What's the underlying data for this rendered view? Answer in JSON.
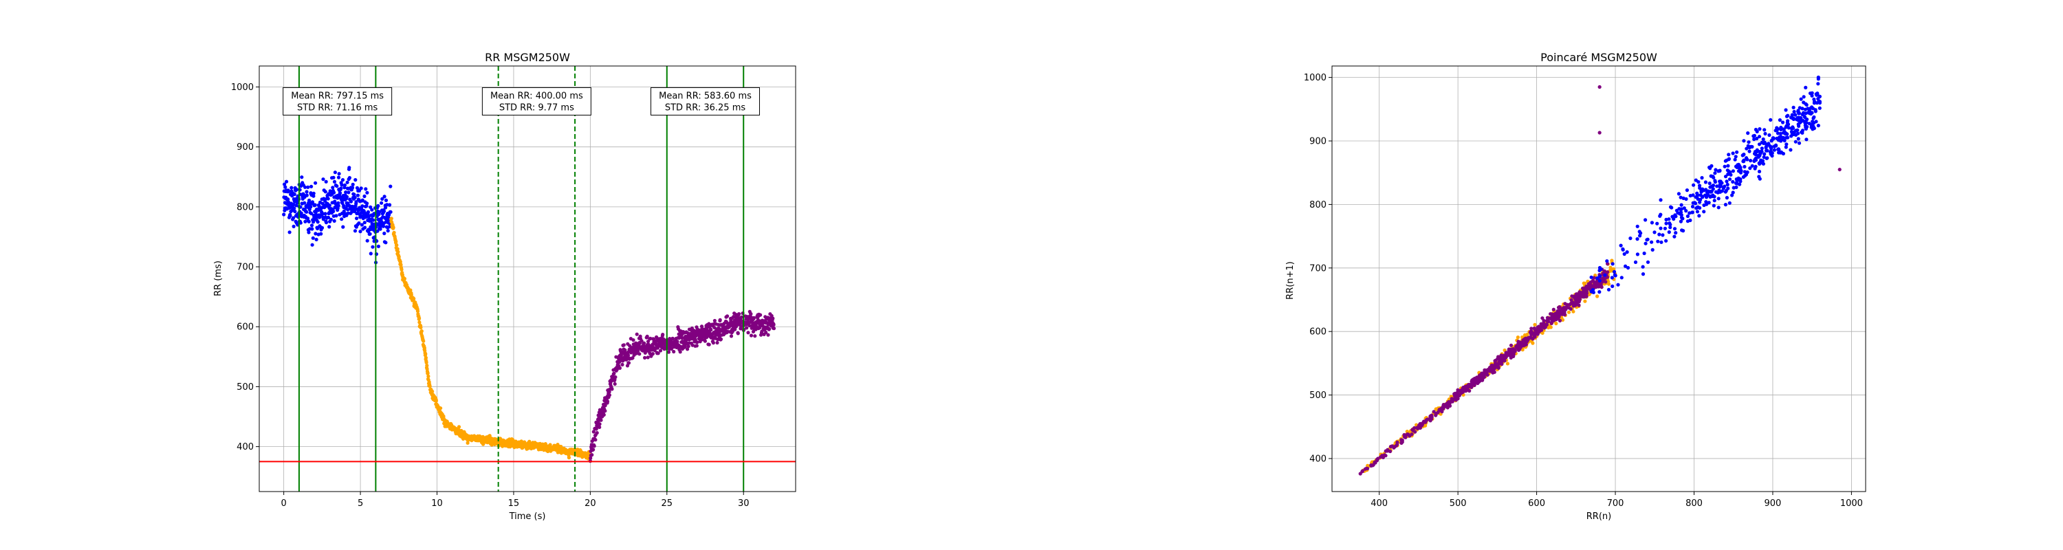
{
  "figure": {
    "background": "#ffffff"
  },
  "chart_data": [
    {
      "type": "scatter",
      "title": "RR MSGM250W",
      "xlabel": "Time (s)",
      "ylabel": "RR (ms)",
      "xlim": [
        -1.6,
        33.4
      ],
      "ylim": [
        325,
        1035
      ],
      "xticks": [
        0,
        5,
        10,
        15,
        20,
        25,
        30
      ],
      "yticks": [
        400,
        500,
        600,
        700,
        800,
        900,
        1000
      ],
      "grid": true,
      "colors": {
        "blue": "#0000ff",
        "orange": "#ffa500",
        "purple": "#800080",
        "green": "#008000",
        "red": "#ff0000"
      },
      "series": [
        {
          "color": "blue",
          "x_range": [
            0,
            7
          ],
          "segments": [
            [
              0,
              810
            ],
            [
              2,
              790
            ],
            [
              4,
              820
            ],
            [
              6,
              770
            ],
            [
              7,
              790
            ]
          ],
          "spread": 65,
          "count": 520
        },
        {
          "color": "orange",
          "x_range": [
            7,
            20
          ],
          "segments": [
            [
              7,
              780
            ],
            [
              7.8,
              680
            ],
            [
              8.7,
              630
            ],
            [
              9.2,
              560
            ],
            [
              9.5,
              500
            ],
            [
              10.5,
              440
            ],
            [
              12,
              415
            ],
            [
              15,
              405
            ],
            [
              17,
              400
            ],
            [
              18.5,
              392
            ],
            [
              20,
              385
            ]
          ],
          "spread": 9,
          "count": 850
        },
        {
          "color": "purple",
          "x_range": [
            20,
            32
          ],
          "segments": [
            [
              20,
              380
            ],
            [
              20.5,
              440
            ],
            [
              21.2,
              490
            ],
            [
              22,
              550
            ],
            [
              23,
              565
            ],
            [
              25,
              570
            ],
            [
              27,
              585
            ],
            [
              29,
              600
            ],
            [
              30,
              610
            ],
            [
              32,
              605
            ]
          ],
          "spread": 25,
          "count": 820
        }
      ],
      "vlines": [
        {
          "x": 1,
          "style": "solid",
          "color": "green"
        },
        {
          "x": 6,
          "style": "solid",
          "color": "green"
        },
        {
          "x": 14,
          "style": "dashed",
          "color": "green"
        },
        {
          "x": 19,
          "style": "dashed",
          "color": "green"
        },
        {
          "x": 25,
          "style": "solid",
          "color": "green"
        },
        {
          "x": 30,
          "style": "solid",
          "color": "green"
        }
      ],
      "hline": {
        "y": 375,
        "color": "red"
      },
      "annotations": [
        {
          "x": 3.5,
          "y": 976,
          "lines": [
            "Mean RR: 797.15 ms",
            "STD RR: 71.16 ms"
          ]
        },
        {
          "x": 16.5,
          "y": 976,
          "lines": [
            "Mean RR: 400.00 ms",
            "STD RR: 9.77 ms"
          ]
        },
        {
          "x": 27.5,
          "y": 976,
          "lines": [
            "Mean RR: 583.60 ms",
            "STD RR: 36.25 ms"
          ]
        }
      ]
    },
    {
      "type": "scatter",
      "title": "Poincaré MSGM250W",
      "xlabel": "RR(n)",
      "ylabel": "RR(n+1)",
      "xlim": [
        340,
        1018
      ],
      "ylim": [
        348,
        1018
      ],
      "xticks": [
        400,
        500,
        600,
        700,
        800,
        900,
        1000
      ],
      "yticks": [
        400,
        500,
        600,
        700,
        800,
        900,
        1000
      ],
      "grid": true,
      "colors": {
        "blue": "#0000ff",
        "orange": "#ffa500",
        "purple": "#800080"
      },
      "series": [
        {
          "color": "orange",
          "x_range": [
            375,
            700
          ],
          "spread": 18,
          "count": 420
        },
        {
          "color": "purple",
          "x_range": [
            375,
            690
          ],
          "spread": 14,
          "count": 650
        },
        {
          "color": "blue",
          "x_range": [
            650,
            960
          ],
          "spread": 48,
          "count": 520
        }
      ],
      "outliers": [
        {
          "x": 680,
          "y": 985,
          "color": "purple"
        },
        {
          "x": 680,
          "y": 913,
          "color": "purple"
        },
        {
          "x": 985,
          "y": 855,
          "color": "purple"
        }
      ]
    }
  ]
}
